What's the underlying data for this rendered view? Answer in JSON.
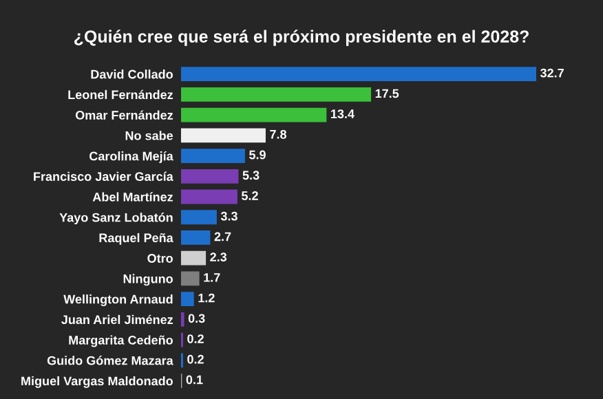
{
  "chart_data": {
    "type": "bar",
    "orientation": "horizontal",
    "title": "¿Quién cree que será el próximo presidente en el 2028?",
    "categories": [
      "David Collado",
      "Leonel Fernández",
      "Omar Fernández",
      "No sabe",
      "Carolina Mejía",
      "Francisco Javier García",
      "Abel Martínez",
      "Yayo Sanz Lobatón",
      "Raquel Peña",
      "Otro",
      "Ninguno",
      "Wellington Arnaud",
      "Juan Ariel Jiménez",
      "Margarita Cedeño",
      "Guido Gómez Mazara",
      "Miguel Vargas Maldonado"
    ],
    "values": [
      32.7,
      17.5,
      13.4,
      7.8,
      5.9,
      5.3,
      5.2,
      3.3,
      2.7,
      2.3,
      1.7,
      1.2,
      0.3,
      0.2,
      0.2,
      0.1
    ],
    "colors": [
      "#1e6fcc",
      "#3cbf3a",
      "#3cbf3a",
      "#f0f0f0",
      "#1e6fcc",
      "#7a3db3",
      "#7a3db3",
      "#1e6fcc",
      "#1e6fcc",
      "#cfcfcf",
      "#7f7f7f",
      "#1e6fcc",
      "#7a3db3",
      "#7a3db3",
      "#1e6fcc",
      "#a8a8a8"
    ],
    "data_labels": true,
    "grid": false,
    "legend": false
  }
}
